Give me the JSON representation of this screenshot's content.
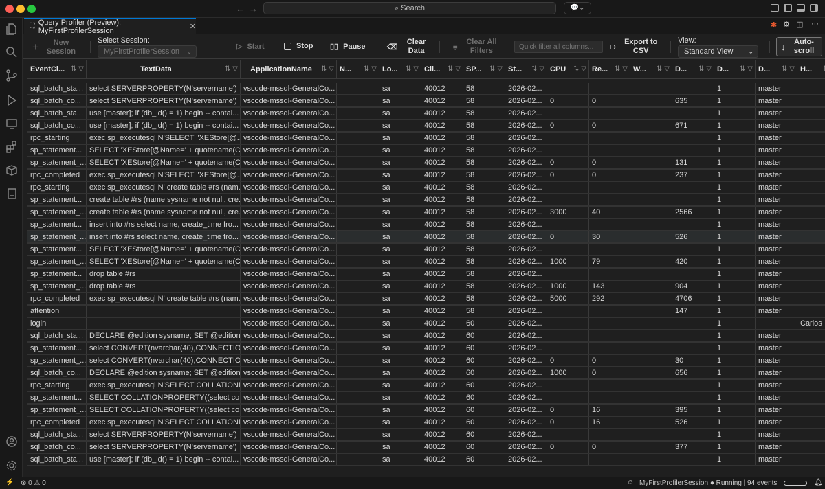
{
  "titlebar": {
    "search_label": "Search"
  },
  "tab": {
    "title": "Query Profiler (Preview): MyFirstProfilerSession"
  },
  "toolbar": {
    "new_session": "New Session",
    "select_session_label": "Select Session:",
    "select_session_value": "MyFirstProfilerSession",
    "start": "Start",
    "stop": "Stop",
    "pause": "Pause",
    "clear_data": "Clear Data",
    "clear_filters": "Clear All Filters",
    "filter_placeholder": "Quick filter all columns...",
    "export": "Export to CSV",
    "view_label": "View:",
    "view_value": "Standard View",
    "autoscroll": "Auto-scroll"
  },
  "columns": [
    "EventCl...",
    "TextData",
    "ApplicationName",
    "N...",
    "Lo...",
    "Cli...",
    "SP...",
    "St...",
    "CPU",
    "Re...",
    "W...",
    "D...",
    "D...",
    "D...",
    "H..."
  ],
  "rows": [
    [
      "sql_batch_sta...",
      "select SERVERPROPERTY(N'servername')",
      "vscode-mssql-GeneralCo...",
      "",
      "sa",
      "40012",
      "58",
      "2026-02...",
      "",
      "",
      "",
      "",
      "1",
      "master",
      ""
    ],
    [
      "sql_batch_co...",
      "select SERVERPROPERTY(N'servername')",
      "vscode-mssql-GeneralCo...",
      "",
      "sa",
      "40012",
      "58",
      "2026-02...",
      "0",
      "0",
      "",
      "635",
      "1",
      "master",
      ""
    ],
    [
      "sql_batch_sta...",
      "use [master]; if (db_id() = 1) begin -- contai...",
      "vscode-mssql-GeneralCo...",
      "",
      "sa",
      "40012",
      "58",
      "2026-02...",
      "",
      "",
      "",
      "",
      "1",
      "master",
      ""
    ],
    [
      "sql_batch_co...",
      "use [master]; if (db_id() = 1) begin -- contai...",
      "vscode-mssql-GeneralCo...",
      "",
      "sa",
      "40012",
      "58",
      "2026-02...",
      "0",
      "0",
      "",
      "671",
      "1",
      "master",
      ""
    ],
    [
      "rpc_starting",
      "exec sp_executesql N'SELECT ''XEStore[@...",
      "vscode-mssql-GeneralCo...",
      "",
      "sa",
      "40012",
      "58",
      "2026-02...",
      "",
      "",
      "",
      "",
      "1",
      "master",
      ""
    ],
    [
      "sp_statement...",
      "SELECT 'XEStore[@Name=' + quotename(C...",
      "vscode-mssql-GeneralCo...",
      "",
      "sa",
      "40012",
      "58",
      "2026-02...",
      "",
      "",
      "",
      "",
      "1",
      "master",
      ""
    ],
    [
      "sp_statement_...",
      "SELECT 'XEStore[@Name=' + quotename(C...",
      "vscode-mssql-GeneralCo...",
      "",
      "sa",
      "40012",
      "58",
      "2026-02...",
      "0",
      "0",
      "",
      "131",
      "1",
      "master",
      ""
    ],
    [
      "rpc_completed",
      "exec sp_executesql N'SELECT ''XEStore[@...",
      "vscode-mssql-GeneralCo...",
      "",
      "sa",
      "40012",
      "58",
      "2026-02...",
      "0",
      "0",
      "",
      "237",
      "1",
      "master",
      ""
    ],
    [
      "rpc_starting",
      "exec sp_executesql N' create table #rs (nam...",
      "vscode-mssql-GeneralCo...",
      "",
      "sa",
      "40012",
      "58",
      "2026-02...",
      "",
      "",
      "",
      "",
      "1",
      "master",
      ""
    ],
    [
      "sp_statement...",
      "create table #rs (name sysname not null, cre...",
      "vscode-mssql-GeneralCo...",
      "",
      "sa",
      "40012",
      "58",
      "2026-02...",
      "",
      "",
      "",
      "",
      "1",
      "master",
      ""
    ],
    [
      "sp_statement_...",
      "create table #rs (name sysname not null, cre...",
      "vscode-mssql-GeneralCo...",
      "",
      "sa",
      "40012",
      "58",
      "2026-02...",
      "3000",
      "40",
      "",
      "2566",
      "1",
      "master",
      ""
    ],
    [
      "sp_statement...",
      "insert into #rs select name, create_time fro...",
      "vscode-mssql-GeneralCo...",
      "",
      "sa",
      "40012",
      "58",
      "2026-02...",
      "",
      "",
      "",
      "",
      "1",
      "master",
      ""
    ],
    [
      "sp_statement_...",
      "insert into #rs select name, create_time fro...",
      "vscode-mssql-GeneralCo...",
      "",
      "sa",
      "40012",
      "58",
      "2026-02...",
      "0",
      "30",
      "",
      "526",
      "1",
      "master",
      ""
    ],
    [
      "sp_statement...",
      "SELECT 'XEStore[@Name=' + quotename(C...",
      "vscode-mssql-GeneralCo...",
      "",
      "sa",
      "40012",
      "58",
      "2026-02...",
      "",
      "",
      "",
      "",
      "1",
      "master",
      ""
    ],
    [
      "sp_statement_...",
      "SELECT 'XEStore[@Name=' + quotename(C...",
      "vscode-mssql-GeneralCo...",
      "",
      "sa",
      "40012",
      "58",
      "2026-02...",
      "1000",
      "79",
      "",
      "420",
      "1",
      "master",
      ""
    ],
    [
      "sp_statement...",
      "drop table #rs",
      "vscode-mssql-GeneralCo...",
      "",
      "sa",
      "40012",
      "58",
      "2026-02...",
      "",
      "",
      "",
      "",
      "1",
      "master",
      ""
    ],
    [
      "sp_statement_...",
      "drop table #rs",
      "vscode-mssql-GeneralCo...",
      "",
      "sa",
      "40012",
      "58",
      "2026-02...",
      "1000",
      "143",
      "",
      "904",
      "1",
      "master",
      ""
    ],
    [
      "rpc_completed",
      "exec sp_executesql N' create table #rs (nam...",
      "vscode-mssql-GeneralCo...",
      "",
      "sa",
      "40012",
      "58",
      "2026-02...",
      "5000",
      "292",
      "",
      "4706",
      "1",
      "master",
      ""
    ],
    [
      "attention",
      "",
      "vscode-mssql-GeneralCo...",
      "",
      "sa",
      "40012",
      "58",
      "2026-02...",
      "",
      "",
      "",
      "147",
      "1",
      "master",
      ""
    ],
    [
      "login",
      "",
      "vscode-mssql-GeneralCo...",
      "",
      "sa",
      "40012",
      "60",
      "2026-02...",
      "",
      "",
      "",
      "",
      "1",
      "",
      "Carlos"
    ],
    [
      "sql_batch_sta...",
      "DECLARE @edition sysname; SET @edition ...",
      "vscode-mssql-GeneralCo...",
      "",
      "sa",
      "40012",
      "60",
      "2026-02...",
      "",
      "",
      "",
      "",
      "1",
      "master",
      ""
    ],
    [
      "sp_statement...",
      "select CONVERT(nvarchar(40),CONNECTIO...",
      "vscode-mssql-GeneralCo...",
      "",
      "sa",
      "40012",
      "60",
      "2026-02...",
      "",
      "",
      "",
      "",
      "1",
      "master",
      ""
    ],
    [
      "sp_statement_...",
      "select CONVERT(nvarchar(40),CONNECTIO...",
      "vscode-mssql-GeneralCo...",
      "",
      "sa",
      "40012",
      "60",
      "2026-02...",
      "0",
      "0",
      "",
      "30",
      "1",
      "master",
      ""
    ],
    [
      "sql_batch_co...",
      "DECLARE @edition sysname; SET @edition ...",
      "vscode-mssql-GeneralCo...",
      "",
      "sa",
      "40012",
      "60",
      "2026-02...",
      "1000",
      "0",
      "",
      "656",
      "1",
      "master",
      ""
    ],
    [
      "rpc_starting",
      "exec sp_executesql N'SELECT COLLATIONP...",
      "vscode-mssql-GeneralCo...",
      "",
      "sa",
      "40012",
      "60",
      "2026-02...",
      "",
      "",
      "",
      "",
      "1",
      "master",
      ""
    ],
    [
      "sp_statement...",
      "SELECT COLLATIONPROPERTY((select coll...",
      "vscode-mssql-GeneralCo...",
      "",
      "sa",
      "40012",
      "60",
      "2026-02...",
      "",
      "",
      "",
      "",
      "1",
      "master",
      ""
    ],
    [
      "sp_statement_...",
      "SELECT COLLATIONPROPERTY((select coll...",
      "vscode-mssql-GeneralCo...",
      "",
      "sa",
      "40012",
      "60",
      "2026-02...",
      "0",
      "16",
      "",
      "395",
      "1",
      "master",
      ""
    ],
    [
      "rpc_completed",
      "exec sp_executesql N'SELECT COLLATIONP...",
      "vscode-mssql-GeneralCo...",
      "",
      "sa",
      "40012",
      "60",
      "2026-02...",
      "0",
      "16",
      "",
      "526",
      "1",
      "master",
      ""
    ],
    [
      "sql_batch_sta...",
      "select SERVERPROPERTY(N'servername')",
      "vscode-mssql-GeneralCo...",
      "",
      "sa",
      "40012",
      "60",
      "2026-02...",
      "",
      "",
      "",
      "",
      "1",
      "master",
      ""
    ],
    [
      "sql_batch_co...",
      "select SERVERPROPERTY(N'servername')",
      "vscode-mssql-GeneralCo...",
      "",
      "sa",
      "40012",
      "60",
      "2026-02...",
      "0",
      "0",
      "",
      "377",
      "1",
      "master",
      ""
    ],
    [
      "sql_batch_sta...",
      "use [master]; if (db_id() = 1) begin -- contai...",
      "vscode-mssql-GeneralCo...",
      "",
      "sa",
      "40012",
      "60",
      "2026-02...",
      "",
      "",
      "",
      "",
      "1",
      "master",
      ""
    ]
  ],
  "status": {
    "errors": "0",
    "warnings": "0",
    "session": "MyFirstProfilerSession",
    "state": "Running | 94 events"
  },
  "colors": {
    "accent": "#0078d4",
    "background": "#1f1f1f",
    "selected_row": "#2a2d2e"
  }
}
